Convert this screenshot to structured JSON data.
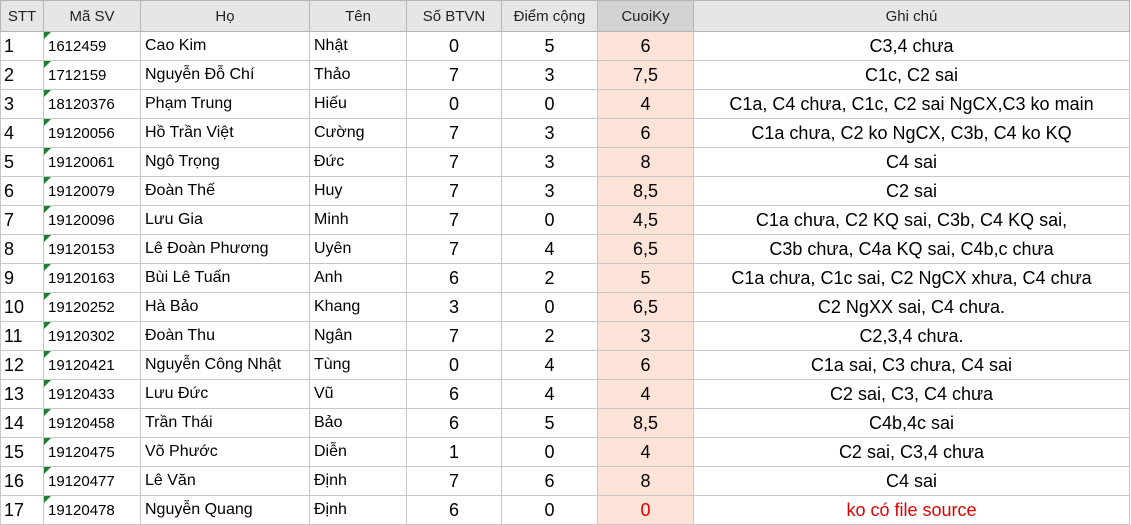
{
  "headers": [
    "STT",
    "Mã SV",
    "Họ",
    "Tên",
    "Số BTVN",
    "Điểm cộng",
    "CuoiKy",
    "Ghi chú"
  ],
  "rows": [
    {
      "stt": "1",
      "ma_sv": "1612459",
      "ho": "Cao Kim",
      "ten": "Nhật",
      "so_btvn": "0",
      "diem_cong": "5",
      "cuoi_ky": "6",
      "ghi_chu": "C3,4 chưa"
    },
    {
      "stt": "2",
      "ma_sv": "1712159",
      "ho": "Nguyễn Đỗ Chí",
      "ten": "Thảo",
      "so_btvn": "7",
      "diem_cong": "3",
      "cuoi_ky": "7,5",
      "ghi_chu": "C1c, C2 sai"
    },
    {
      "stt": "3",
      "ma_sv": "18120376",
      "ho": "Phạm Trung",
      "ten": "Hiếu",
      "so_btvn": "0",
      "diem_cong": "0",
      "cuoi_ky": "4",
      "ghi_chu": "C1a, C4 chưa, C1c, C2 sai NgCX,C3 ko main"
    },
    {
      "stt": "4",
      "ma_sv": "19120056",
      "ho": "Hồ Trần Việt",
      "ten": "Cường",
      "so_btvn": "7",
      "diem_cong": "3",
      "cuoi_ky": "6",
      "ghi_chu": "C1a chưa, C2 ko NgCX, C3b, C4 ko KQ"
    },
    {
      "stt": "5",
      "ma_sv": "19120061",
      "ho": "Ngô Trọng",
      "ten": "Đức",
      "so_btvn": "7",
      "diem_cong": "3",
      "cuoi_ky": "8",
      "ghi_chu": "C4 sai"
    },
    {
      "stt": "6",
      "ma_sv": "19120079",
      "ho": "Đoàn Thế",
      "ten": "Huy",
      "so_btvn": "7",
      "diem_cong": "3",
      "cuoi_ky": "8,5",
      "ghi_chu": "C2 sai"
    },
    {
      "stt": "7",
      "ma_sv": "19120096",
      "ho": "Lưu Gia",
      "ten": "Minh",
      "so_btvn": "7",
      "diem_cong": "0",
      "cuoi_ky": "4,5",
      "ghi_chu": "C1a chưa, C2 KQ sai, C3b, C4 KQ sai,"
    },
    {
      "stt": "8",
      "ma_sv": "19120153",
      "ho": "Lê Đoàn Phương",
      "ten": "Uyên",
      "so_btvn": "7",
      "diem_cong": "4",
      "cuoi_ky": "6,5",
      "ghi_chu": "C3b chưa, C4a KQ sai, C4b,c chưa"
    },
    {
      "stt": "9",
      "ma_sv": "19120163",
      "ho": "Bùi Lê Tuấn",
      "ten": "Anh",
      "so_btvn": "6",
      "diem_cong": "2",
      "cuoi_ky": "5",
      "ghi_chu": "C1a chưa, C1c sai, C2 NgCX xhưa, C4 chưa"
    },
    {
      "stt": "10",
      "ma_sv": "19120252",
      "ho": "Hà Bảo",
      "ten": "Khang",
      "so_btvn": "3",
      "diem_cong": "0",
      "cuoi_ky": "6,5",
      "ghi_chu": "C2 NgXX sai, C4 chưa."
    },
    {
      "stt": "11",
      "ma_sv": "19120302",
      "ho": "Đoàn Thu",
      "ten": "Ngân",
      "so_btvn": "7",
      "diem_cong": "2",
      "cuoi_ky": "3",
      "ghi_chu": "C2,3,4 chưa."
    },
    {
      "stt": "12",
      "ma_sv": "19120421",
      "ho": "Nguyễn Công Nhật",
      "ten": "Tùng",
      "so_btvn": "0",
      "diem_cong": "4",
      "cuoi_ky": "6",
      "ghi_chu": "C1a sai, C3 chưa, C4 sai"
    },
    {
      "stt": "13",
      "ma_sv": "19120433",
      "ho": "Lưu Đức",
      "ten": "Vũ",
      "so_btvn": "6",
      "diem_cong": "4",
      "cuoi_ky": "4",
      "ghi_chu": "C2 sai, C3, C4 chưa"
    },
    {
      "stt": "14",
      "ma_sv": "19120458",
      "ho": "Trần Thái",
      "ten": "Bảo",
      "so_btvn": "6",
      "diem_cong": "5",
      "cuoi_ky": "8,5",
      "ghi_chu": "C4b,4c sai"
    },
    {
      "stt": "15",
      "ma_sv": "19120475",
      "ho": "Võ Phước",
      "ten": "Diễn",
      "so_btvn": "1",
      "diem_cong": "0",
      "cuoi_ky": "4",
      "ghi_chu": "C2 sai, C3,4 chưa"
    },
    {
      "stt": "16",
      "ma_sv": "19120477",
      "ho": "Lê Văn",
      "ten": "Định",
      "so_btvn": "7",
      "diem_cong": "6",
      "cuoi_ky": "8",
      "ghi_chu": "C4 sai"
    },
    {
      "stt": "17",
      "ma_sv": "19120478",
      "ho": "Nguyễn Quang",
      "ten": "Định",
      "so_btvn": "6",
      "diem_cong": "0",
      "cuoi_ky": "0",
      "ghi_chu": "ko có file source",
      "highlight": "red"
    }
  ],
  "colors": {
    "header_bg": "#e6e6e6",
    "selected_header_bg": "#d3d3d3",
    "cuoiky_bg": "#fde3d8",
    "warning_text": "#e00000",
    "text_marker": "#1e7e34"
  }
}
